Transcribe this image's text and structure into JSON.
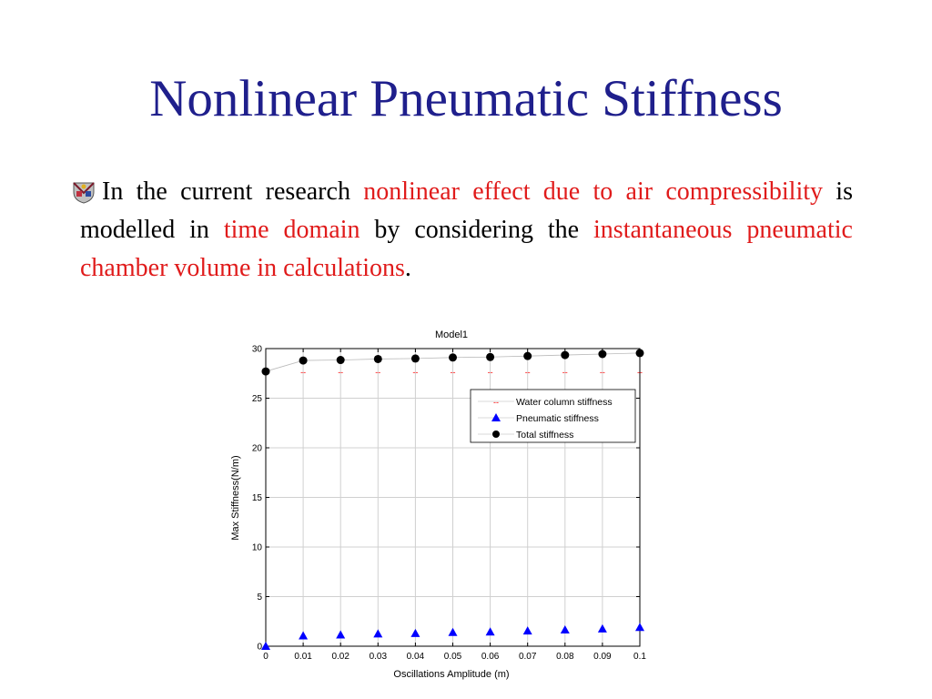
{
  "slide": {
    "title": "Nonlinear Pneumatic Stiffness",
    "bullet_icon": "university-crest-icon",
    "paragraph": {
      "p1": "In the current research ",
      "h1": "nonlinear effect due to air compressibility",
      "p2": " is modelled in ",
      "h2": "time domain",
      "p3": " by considering the ",
      "h3": "instantaneous pneumatic chamber volume in calculations",
      "p4": "."
    },
    "colors": {
      "title": "#1f1f8c",
      "highlight": "#e01b1b",
      "text": "#000000"
    }
  },
  "chart_data": {
    "type": "scatter",
    "title": "Model1",
    "xlabel": "Oscillations Amplitude (m)",
    "ylabel": "Max Stiffness(N/m)",
    "xlim": [
      0,
      0.1
    ],
    "ylim": [
      0,
      30
    ],
    "x_ticks": [
      "0",
      "0.01",
      "0.02",
      "0.03",
      "0.04",
      "0.05",
      "0.06",
      "0.07",
      "0.08",
      "0.09",
      "0.1"
    ],
    "y_ticks": [
      "0",
      "5",
      "10",
      "15",
      "20",
      "25",
      "30"
    ],
    "x": [
      0,
      0.01,
      0.02,
      0.03,
      0.04,
      0.05,
      0.06,
      0.07,
      0.08,
      0.09,
      0.1
    ],
    "grid": true,
    "legend_position": "top-right",
    "series": [
      {
        "name": "Water column stiffness",
        "marker": "--",
        "color": "#ff0000",
        "values": [
          27.7,
          27.7,
          27.7,
          27.7,
          27.7,
          27.7,
          27.7,
          27.7,
          27.7,
          27.7,
          27.7
        ]
      },
      {
        "name": "Pneumatic stiffness",
        "marker": "triangle",
        "color": "#0000ff",
        "values": [
          0,
          1.05,
          1.15,
          1.25,
          1.3,
          1.4,
          1.45,
          1.55,
          1.65,
          1.75,
          1.9
        ]
      },
      {
        "name": "Total stiffness",
        "marker": "circle",
        "color": "#000000",
        "values": [
          27.7,
          28.8,
          28.85,
          28.95,
          29.0,
          29.1,
          29.15,
          29.25,
          29.35,
          29.45,
          29.55
        ]
      }
    ]
  }
}
